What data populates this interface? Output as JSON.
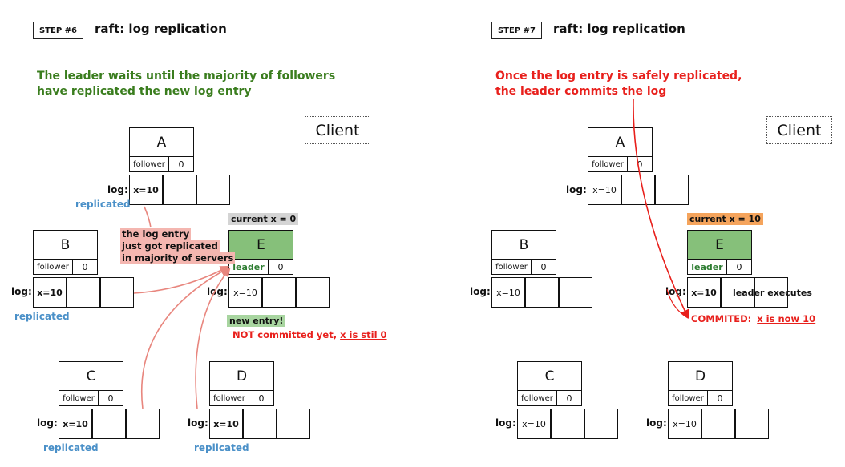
{
  "step6": {
    "badge": "STEP #6",
    "title": "raft: log replication",
    "headline_line1": "The leader waits until the majority of followers",
    "headline_line2": "have replicated the new log entry",
    "client": "Client",
    "nodes": {
      "A": {
        "name": "A",
        "role": "follower",
        "term": "0",
        "log": [
          "x=10",
          "",
          ""
        ],
        "status": "replicated"
      },
      "B": {
        "name": "B",
        "role": "follower",
        "term": "0",
        "log": [
          "x=10",
          "",
          ""
        ],
        "status": "replicated"
      },
      "C": {
        "name": "C",
        "role": "follower",
        "term": "0",
        "log": [
          "x=10",
          "",
          ""
        ],
        "status": "replicated"
      },
      "D": {
        "name": "D",
        "role": "follower",
        "term": "0",
        "log": [
          "x=10",
          "",
          ""
        ],
        "status": "replicated"
      },
      "E": {
        "name": "E",
        "role": "leader",
        "term": "0",
        "log": [
          "x=10",
          "",
          ""
        ]
      }
    },
    "log_label": "log:",
    "current_x": "current x = 0",
    "note_line1": "the log entry",
    "note_line2": "just got replicated",
    "note_line3": "in majority of servers",
    "new_entry": "new entry!",
    "not_committed": "NOT committed yet,",
    "x_still": "x is stil 0"
  },
  "step7": {
    "badge": "STEP #7",
    "title": "raft: log replication",
    "headline_line1": "Once the log entry is safely replicated,",
    "headline_line2": "the leader commits the log",
    "client": "Client",
    "nodes": {
      "A": {
        "name": "A",
        "role": "follower",
        "term": "0",
        "log": [
          "x=10",
          "",
          ""
        ]
      },
      "B": {
        "name": "B",
        "role": "follower",
        "term": "0",
        "log": [
          "x=10",
          "",
          ""
        ]
      },
      "C": {
        "name": "C",
        "role": "follower",
        "term": "0",
        "log": [
          "x=10",
          "",
          ""
        ]
      },
      "D": {
        "name": "D",
        "role": "follower",
        "term": "0",
        "log": [
          "x=10",
          "",
          ""
        ]
      },
      "E": {
        "name": "E",
        "role": "leader",
        "term": "0",
        "log": [
          "x=10",
          "leader executes",
          ""
        ]
      }
    },
    "log_label": "log:",
    "current_x": "current x = 10",
    "committed": "COMMITED:",
    "x_now": "x is now 10"
  },
  "colors": {
    "green_headline": "#3a7d1e",
    "red": "#e8201c",
    "replicated_blue": "#4a90c8",
    "leader_green": "#86c07a",
    "pink_note": "#f4b6b0",
    "grey_tag": "#d4d4d4",
    "orange_tag": "#f5a45c"
  }
}
